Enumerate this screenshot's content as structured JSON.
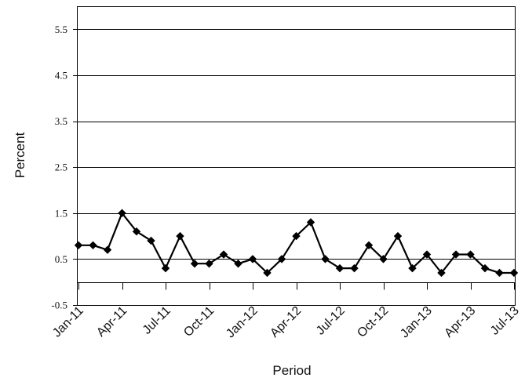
{
  "chart_data": {
    "type": "line",
    "xlabel": "Period",
    "ylabel": "Percent",
    "x": [
      "Jan-11",
      "Feb-11",
      "Mar-11",
      "Apr-11",
      "May-11",
      "Jun-11",
      "Jul-11",
      "Aug-11",
      "Sep-11",
      "Oct-11",
      "Nov-11",
      "Dec-11",
      "Jan-12",
      "Feb-12",
      "Mar-12",
      "Apr-12",
      "May-12",
      "Jun-12",
      "Jul-12",
      "Aug-12",
      "Sep-12",
      "Oct-12",
      "Nov-12",
      "Dec-12",
      "Jan-13",
      "Feb-13",
      "Mar-13",
      "Apr-13",
      "May-13",
      "Jun-13",
      "Jul-13"
    ],
    "xticks": [
      "Jan-11",
      "Apr-11",
      "Jul-11",
      "Oct-11",
      "Jan-12",
      "Apr-12",
      "Jul-12",
      "Oct-12",
      "Jan-13",
      "Apr-13",
      "Jul-13"
    ],
    "ylim": [
      -0.5,
      6
    ],
    "yticks": [
      -0.5,
      0.5,
      1.5,
      2.5,
      3.5,
      4.5,
      5.5
    ],
    "grid": true,
    "legend": "none",
    "series": [
      {
        "color": "#000000",
        "marker": "diamond",
        "values": [
          0.8,
          0.8,
          0.7,
          1.5,
          1.1,
          0.9,
          0.3,
          1.0,
          0.4,
          0.4,
          0.6,
          0.4,
          0.5,
          0.2,
          0.5,
          1.0,
          1.3,
          0.5,
          0.3,
          0.3,
          0.8,
          0.5,
          1.0,
          0.3,
          0.6,
          0.2,
          0.6,
          0.6,
          0.3,
          0.2,
          0.2
        ]
      }
    ]
  }
}
